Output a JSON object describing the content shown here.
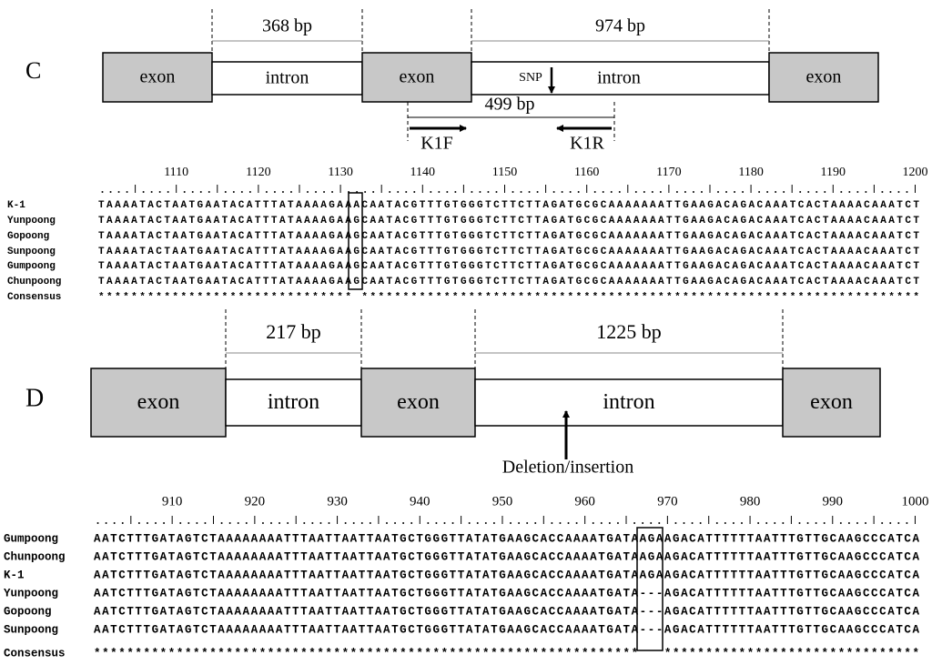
{
  "panels": [
    {
      "label": "C",
      "segments": [
        "exon",
        "intron",
        "exon",
        "intron",
        "exon"
      ],
      "lengths": [
        "368 bp",
        "974 bp"
      ],
      "amplicon": "499 bp",
      "snp": "SNP",
      "primers": [
        "K1F",
        "K1R"
      ],
      "alignment": {
        "ruler": [
          1110,
          1120,
          1130,
          1140,
          1150,
          1160,
          1170,
          1180,
          1190,
          1200
        ],
        "rows": [
          {
            "name": "K-1",
            "seq": "TAAAATACTAATGAATACATTTATAAAAGAAACAATACGTTTGTGGGTCTTCTTAGATGCGCAAAAAAATTGAAGACAGACAAATCACTAAAACAAATCT"
          },
          {
            "name": "Yunpoong",
            "seq": "TAAAATACTAATGAATACATTTATAAAAGAAGCAATACGTTTGTGGGTCTTCTTAGATGCGCAAAAAAATTGAAGACAGACAAATCACTAAAACAAATCT"
          },
          {
            "name": "Gopoong",
            "seq": "TAAAATACTAATGAATACATTTATAAAAGAAGCAATACGTTTGTGGGTCTTCTTAGATGCGCAAAAAAATTGAAGACAGACAAATCACTAAAACAAATCT"
          },
          {
            "name": "Sunpoong",
            "seq": "TAAAATACTAATGAATACATTTATAAAAGAAGCAATACGTTTGTGGGTCTTCTTAGATGCGCAAAAAAATTGAAGACAGACAAATCACTAAAACAAATCT"
          },
          {
            "name": "Gumpoong",
            "seq": "TAAAATACTAATGAATACATTTATAAAAGAAGCAATACGTTTGTGGGTCTTCTTAGATGCGCAAAAAAATTGAAGACAGACAAATCACTAAAACAAATCT"
          },
          {
            "name": "Chunpoong",
            "seq": "TAAAATACTAATGAATACATTTATAAAAGAAGCAATACGTTTGTGGGTCTTCTTAGATGCGCAAAAAAATTGAAGACAGACAAATCACTAAAACAAATCT"
          },
          {
            "name": "Consensus",
            "seq": "******************************* ********************************************************************"
          }
        ]
      }
    },
    {
      "label": "D",
      "segments": [
        "exon",
        "intron",
        "exon",
        "intron",
        "exon"
      ],
      "lengths": [
        "217 bp",
        "1225 bp"
      ],
      "marker": "Deletion/insertion",
      "alignment": {
        "ruler": [
          910,
          920,
          930,
          940,
          950,
          960,
          970,
          980,
          990,
          1000
        ],
        "rows": [
          {
            "name": "Gumpoong",
            "seq": "AATCTTTGATAGTCTAAAAAAAATTTAATTAATTAATGCTGGGTTATATGAAGCACCAAAATGATAAGAAGACATTTTTTAATTTGTTGCAAGCCCATCA"
          },
          {
            "name": "Chunpoong",
            "seq": "AATCTTTGATAGTCTAAAAAAAATTTAATTAATTAATGCTGGGTTATATGAAGCACCAAAATGATAAGAAGACATTTTTTAATTTGTTGCAAGCCCATCA"
          },
          {
            "name": "K-1",
            "seq": "AATCTTTGATAGTCTAAAAAAAATTTAATTAATTAATGCTGGGTTATATGAAGCACCAAAATGATAAGAAGACATTTTTTAATTTGTTGCAAGCCCATCA"
          },
          {
            "name": "Yunpoong",
            "seq": "AATCTTTGATAGTCTAAAAAAAATTTAATTAATTAATGCTGGGTTATATGAAGCACCAAAATGATA---AGACATTTTTTAATTTGTTGCAAGCCCATCA"
          },
          {
            "name": "Gopoong",
            "seq": "AATCTTTGATAGTCTAAAAAAAATTTAATTAATTAATGCTGGGTTATATGAAGCACCAAAATGATA---AGACATTTTTTAATTTGTTGCAAGCCCATCA"
          },
          {
            "name": "Sunpoong",
            "seq": "AATCTTTGATAGTCTAAAAAAAATTTAATTAATTAATGCTGGGTTATATGAAGCACCAAAATGATA---AGACATTTTTTAATTTGTTGCAAGCCCATCA"
          },
          {
            "name": "Consensus",
            "seq": "******************************************************************   *******************************"
          }
        ]
      }
    }
  ]
}
